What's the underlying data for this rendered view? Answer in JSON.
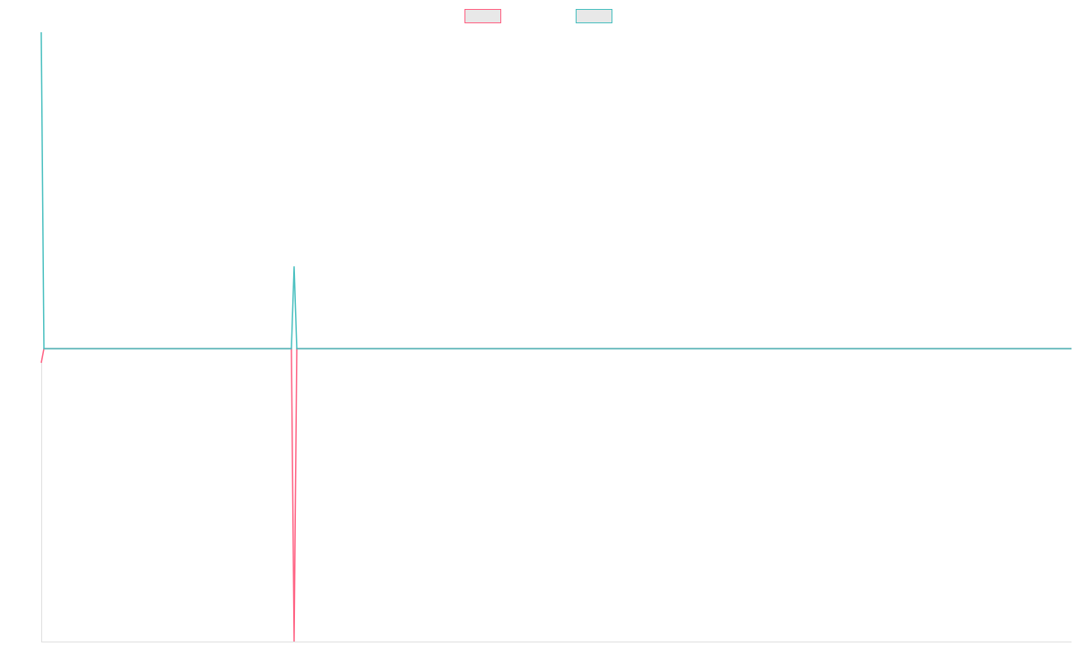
{
  "chart_data": {
    "type": "line",
    "x": [
      0,
      1,
      93,
      94,
      95,
      383
    ],
    "xlim": [
      0,
      383
    ],
    "ylim": [
      -0.926,
      1
    ],
    "series": [
      {
        "color": "#ff6384",
        "values": [
          -0.045,
          0,
          0,
          -0.926,
          0,
          0
        ]
      },
      {
        "color": "#4bc0c0",
        "values": [
          1,
          0,
          0,
          0.26,
          0,
          0
        ]
      }
    ]
  }
}
